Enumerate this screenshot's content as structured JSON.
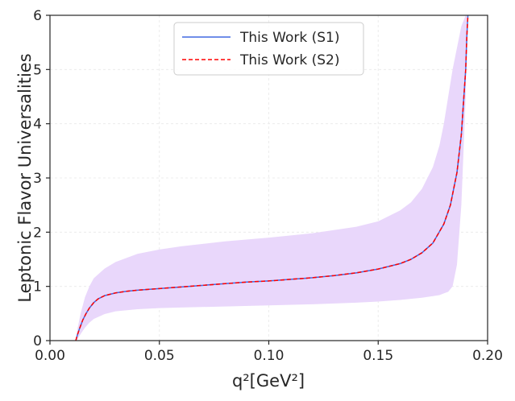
{
  "chart_data": {
    "type": "line",
    "title": "",
    "xlabel": "q²[GeV²]",
    "ylabel": "Leptonic Flavor Universalities",
    "xlim": [
      0.0,
      0.2
    ],
    "ylim": [
      0,
      6
    ],
    "x_ticks": [
      "0.00",
      "0.05",
      "0.10",
      "0.15",
      "0.20"
    ],
    "y_ticks": [
      "0",
      "1",
      "2",
      "3",
      "4",
      "5",
      "6"
    ],
    "grid": true,
    "legend_position": "top-center",
    "colors": {
      "s1": "#4169e1",
      "s2": "#ff0000",
      "band": "#e9d7fb",
      "axis": "#262626",
      "grid": "#ececec"
    },
    "series": [
      {
        "name": "This Work (S1)",
        "style": "solid",
        "x": [
          0.0118,
          0.0125,
          0.0135,
          0.015,
          0.0165,
          0.018,
          0.02,
          0.022,
          0.025,
          0.03,
          0.035,
          0.04,
          0.05,
          0.06,
          0.07,
          0.08,
          0.09,
          0.1,
          0.11,
          0.12,
          0.13,
          0.14,
          0.15,
          0.16,
          0.165,
          0.17,
          0.175,
          0.18,
          0.183,
          0.186,
          0.188,
          0.19,
          0.1905,
          0.191
        ],
        "y": [
          0.0,
          0.1,
          0.22,
          0.38,
          0.5,
          0.6,
          0.7,
          0.77,
          0.83,
          0.88,
          0.91,
          0.93,
          0.96,
          0.99,
          1.02,
          1.05,
          1.08,
          1.1,
          1.13,
          1.16,
          1.2,
          1.25,
          1.32,
          1.42,
          1.5,
          1.62,
          1.8,
          2.15,
          2.5,
          3.1,
          3.8,
          5.0,
          5.6,
          6.0
        ]
      },
      {
        "name": "This Work (S2)",
        "style": "dashed",
        "x": [
          0.0118,
          0.0125,
          0.0135,
          0.015,
          0.0165,
          0.018,
          0.02,
          0.022,
          0.025,
          0.03,
          0.035,
          0.04,
          0.05,
          0.06,
          0.07,
          0.08,
          0.09,
          0.1,
          0.11,
          0.12,
          0.13,
          0.14,
          0.15,
          0.16,
          0.165,
          0.17,
          0.175,
          0.18,
          0.183,
          0.186,
          0.188,
          0.19,
          0.1905,
          0.191
        ],
        "y": [
          0.0,
          0.1,
          0.22,
          0.38,
          0.5,
          0.6,
          0.7,
          0.77,
          0.83,
          0.88,
          0.91,
          0.93,
          0.96,
          0.99,
          1.02,
          1.05,
          1.08,
          1.1,
          1.13,
          1.16,
          1.2,
          1.25,
          1.32,
          1.42,
          1.5,
          1.62,
          1.8,
          2.15,
          2.5,
          3.1,
          3.8,
          5.0,
          5.6,
          6.0
        ]
      }
    ],
    "band": {
      "x": [
        0.0118,
        0.0125,
        0.014,
        0.016,
        0.018,
        0.02,
        0.025,
        0.03,
        0.04,
        0.05,
        0.06,
        0.08,
        0.1,
        0.12,
        0.14,
        0.15,
        0.16,
        0.165,
        0.17,
        0.175,
        0.178,
        0.18,
        0.182,
        0.184,
        0.186,
        0.188,
        0.19,
        0.1905
      ],
      "upper": [
        0.0,
        0.2,
        0.5,
        0.8,
        1.0,
        1.15,
        1.33,
        1.45,
        1.6,
        1.68,
        1.74,
        1.83,
        1.9,
        1.98,
        2.1,
        2.2,
        2.4,
        2.55,
        2.8,
        3.2,
        3.6,
        4.0,
        4.5,
        5.0,
        5.4,
        5.8,
        6.0,
        6.0
      ],
      "lower": [
        0.0,
        0.02,
        0.12,
        0.24,
        0.33,
        0.4,
        0.49,
        0.54,
        0.58,
        0.6,
        0.61,
        0.63,
        0.65,
        0.67,
        0.7,
        0.72,
        0.75,
        0.77,
        0.79,
        0.82,
        0.84,
        0.87,
        0.9,
        1.0,
        1.4,
        2.5,
        4.5,
        6.0
      ]
    }
  }
}
